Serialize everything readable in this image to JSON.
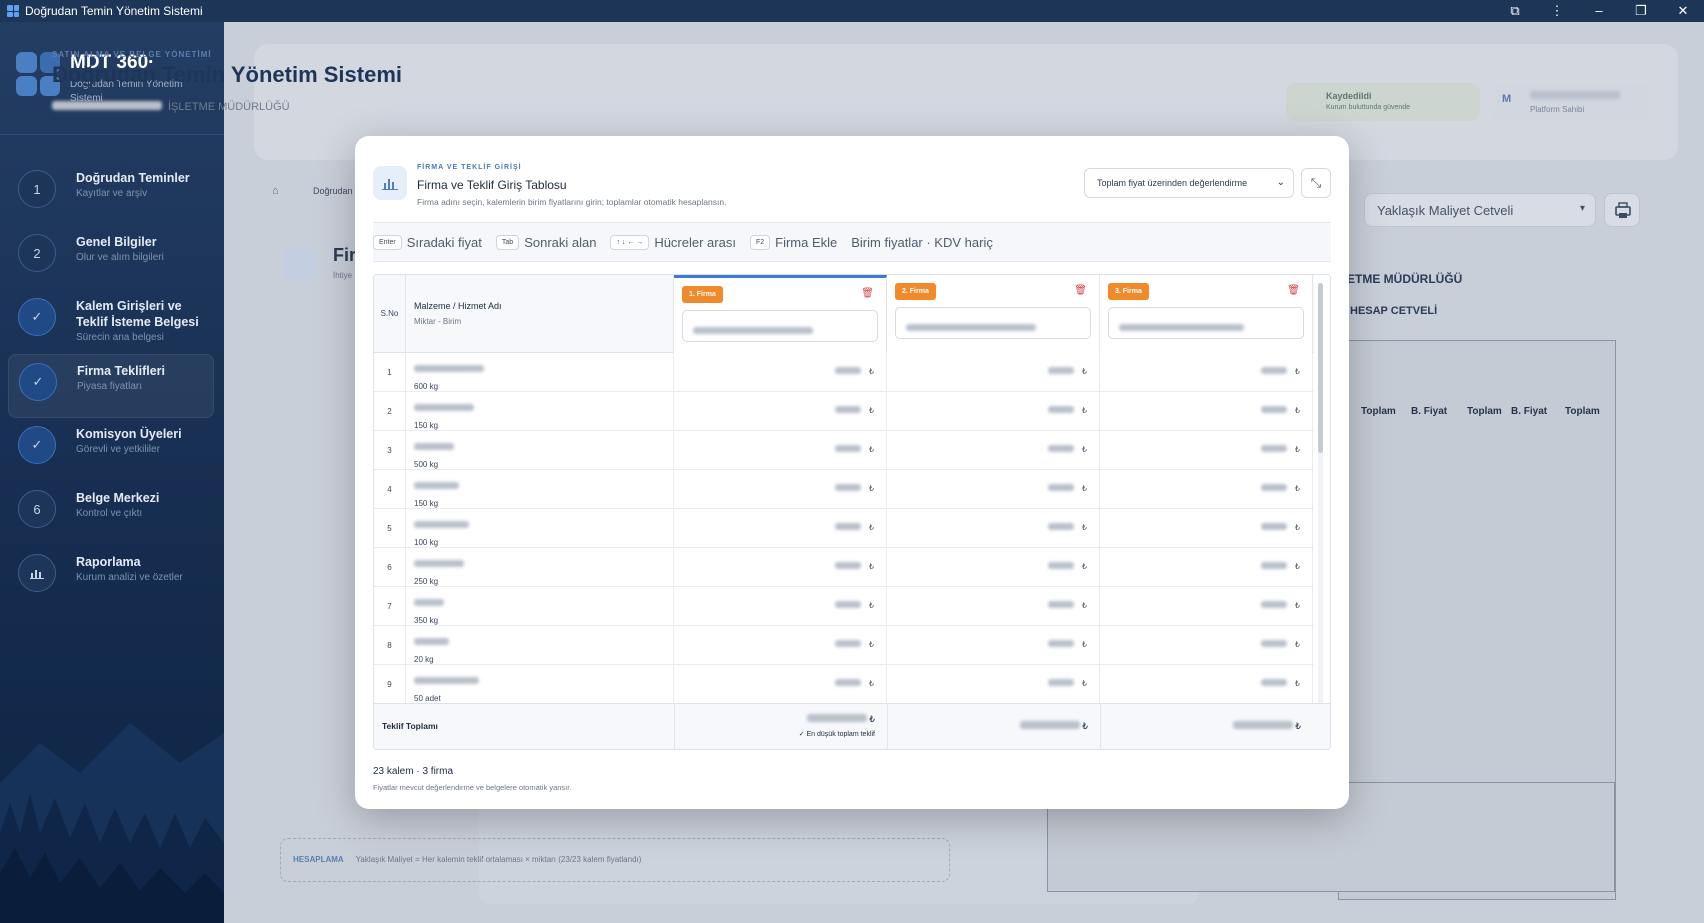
{
  "window": {
    "title": "Doğrudan Temin Yönetim Sistemi"
  },
  "sidebar": {
    "brand": "MDT 360·",
    "brand_sub": "Doğrudan Temin Yönetim Sistemi",
    "steps": [
      {
        "num": "1",
        "title": "Doğrudan Teminler",
        "sub": "Kayıtlar ve arşiv",
        "state": "todo"
      },
      {
        "num": "2",
        "title": "Genel Bilgiler",
        "sub": "Olur ve alım bilgileri",
        "state": "todo"
      },
      {
        "num": "✓",
        "title": "Kalem Girişleri ve Teklif İsteme Belgesi",
        "sub": "Sürecin ana belgesi",
        "state": "done"
      },
      {
        "num": "✓",
        "title": "Firma Teklifleri",
        "sub": "Piyasa fiyatları",
        "state": "active"
      },
      {
        "num": "✓",
        "title": "Komisyon Üyeleri",
        "sub": "Görevli ve yetkililer",
        "state": "done"
      },
      {
        "num": "6",
        "title": "Belge Merkezi",
        "sub": "Kontrol ve çıktı",
        "state": "todo"
      },
      {
        "num": "📊",
        "title": "Raporlama",
        "sub": "Kurum analizi ve özetler",
        "state": "todo"
      }
    ]
  },
  "header": {
    "kicker": "SATIN ALMA VE BELGE YÖNETİMİ",
    "title": "Doğrudan Temin Yönetim Sistemi",
    "org_suffix": "İŞLETME MÜDÜRLÜĞÜ",
    "saved_title": "Kaydedildi",
    "saved_sub": "Kurum buluttunda güvende",
    "owner_sub": "Platform Sahibi",
    "avatar": "M"
  },
  "background": {
    "breadcrumb": "Doğrudan",
    "section_title": "Fir",
    "section_sub": "İhtiye",
    "doc_select": "Yaklaşık Maliyet Cetveli",
    "doc_heading1": "ETME MÜDÜRLÜĞÜ",
    "doc_heading2": "HESAP CETVELİ",
    "col_headers": [
      "Toplam",
      "B. Fiyat",
      "Toplam",
      "B. Fiyat",
      "Toplam"
    ],
    "hesap_label": "HESAPLAMA",
    "hesap_text": "Yaklaşık Maliyet = Her kalemin teklif ortalaması × miktarı (23/23 kalem fiyatlandı)"
  },
  "modal": {
    "kicker": "FİRMA VE TEKLİF GİRİŞİ",
    "title": "Firma ve Teklif Giriş Tablosu",
    "desc": "Firma adını seçin, kalemlerin birim fiyatlarını girin; toplamlar otomatik hesaplansın.",
    "eval_select": "Toplam fiyat üzerinden değerlendirme",
    "shortcuts": [
      {
        "key": "Enter",
        "label": "Sıradaki fiyat"
      },
      {
        "key": "Tab",
        "label": "Sonraki alan"
      },
      {
        "key": "↑ ↓ ← →",
        "label": "Hücreler arası"
      },
      {
        "key": "F2",
        "label": "Firma Ekle"
      }
    ],
    "price_note": "Birim fiyatlar · KDV hariç",
    "col_sno": "S.No",
    "col_name": "Malzeme / Hizmet Adı",
    "col_unit": "Miktar - Birim",
    "firms": [
      "1. Firma",
      "2. Firma",
      "3. Firma"
    ],
    "currency": "₺",
    "rows": [
      {
        "no": "1",
        "unit": "600 kg"
      },
      {
        "no": "2",
        "unit": "150 kg"
      },
      {
        "no": "3",
        "unit": "500 kg"
      },
      {
        "no": "4",
        "unit": "150 kg"
      },
      {
        "no": "5",
        "unit": "100 kg"
      },
      {
        "no": "6",
        "unit": "250 kg"
      },
      {
        "no": "7",
        "unit": "350 kg"
      },
      {
        "no": "8",
        "unit": "20 kg"
      },
      {
        "no": "9",
        "unit": "50 adet"
      }
    ],
    "total_label": "Teklif Toplamı",
    "lowest_label": "En düşük toplam teklif",
    "count": "23 kalem · 3 firma",
    "note": "Fiyatlar mevcut değerlendirme ve belgelere otomatik yansır."
  }
}
